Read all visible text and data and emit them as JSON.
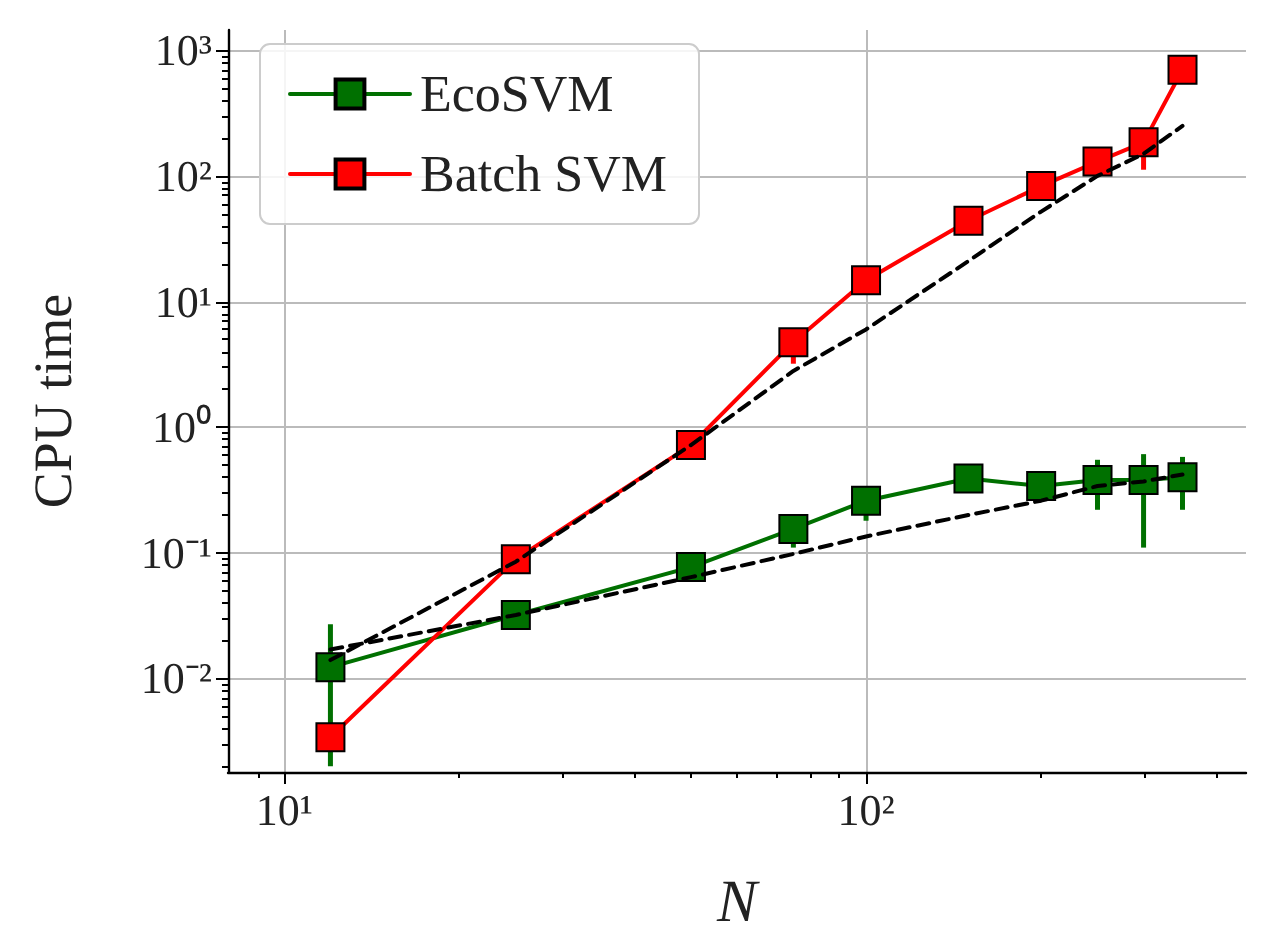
{
  "chart_data": {
    "type": "line",
    "xlabel": "N",
    "ylabel": "CPU time",
    "log": "xy",
    "grid": true,
    "legend": "top left",
    "marker": "square",
    "x": [
      12,
      25,
      50,
      75,
      100,
      150,
      200,
      250,
      300,
      350
    ],
    "xlim": [
      8,
      450
    ],
    "ylim": [
      0.0018,
      1450
    ],
    "xticks": [
      {
        "value": 10,
        "label": "10¹"
      },
      {
        "value": 100,
        "label": "10²"
      }
    ],
    "yticks": [
      {
        "value": 0.01,
        "label": "10⁻²"
      },
      {
        "value": 0.1,
        "label": "10⁻¹"
      },
      {
        "value": 1,
        "label": "10⁰"
      },
      {
        "value": 10,
        "label": "10¹"
      },
      {
        "value": 100,
        "label": "10²"
      },
      {
        "value": 1000,
        "label": "10³"
      }
    ],
    "series": [
      {
        "name": "EcoSVM",
        "color": "#007000",
        "values": [
          0.0123,
          0.032,
          0.077,
          0.155,
          0.26,
          0.39,
          0.34,
          0.38,
          0.38,
          0.4
        ],
        "errors": [
          [
            0.002,
            0.027
          ],
          null,
          null,
          [
            0.11,
            0.2
          ],
          [
            0.18,
            0.3
          ],
          [
            0.3,
            0.45
          ],
          null,
          [
            0.22,
            0.55
          ],
          [
            0.11,
            0.61
          ],
          [
            0.22,
            0.58
          ]
        ]
      },
      {
        "name": "Batch SVM",
        "color": "#ff0000",
        "values": [
          0.0034,
          0.089,
          0.72,
          4.75,
          14.8,
          44,
          83,
          130,
          185,
          700
        ],
        "errors": [
          null,
          null,
          null,
          [
            3.2,
            6
          ],
          null,
          null,
          null,
          null,
          [
            112,
            230
          ],
          null
        ]
      },
      {
        "color": "#000000",
        "marker": "none",
        "line_style": "dashed",
        "values": [
          0.017,
          0.032,
          0.064,
          0.098,
          0.135,
          0.2,
          0.26,
          0.34,
          0.37,
          0.42
        ]
      },
      {
        "color": "#000000",
        "marker": "none",
        "line_style": "dashed",
        "values": [
          0.014,
          0.085,
          0.72,
          2.8,
          6,
          21,
          52,
          100,
          150,
          250
        ]
      }
    ]
  }
}
